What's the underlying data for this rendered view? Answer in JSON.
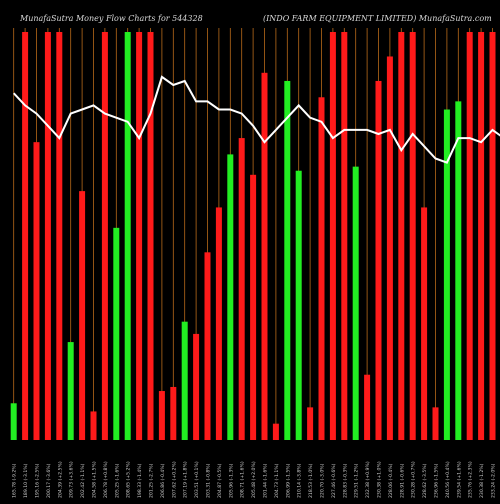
{
  "header": {
    "left_text": "MunafaSutra  Money Flow  Charts for 544328",
    "right_text": "(INDO FARM EQUIPMENT LIMITED) MunafaSutra.com"
  },
  "colors": {
    "background": "#000000",
    "up_bar": "#22ee22",
    "down_bar": "#ff1a1a",
    "grid_line": "#b86a1a",
    "price_line": "#ffffff",
    "label_text": "#cfcfcf"
  },
  "chart_data": {
    "type": "bar",
    "title": "",
    "bar_scale": [
      0,
      100
    ],
    "line_scale": [
      0,
      100
    ],
    "categories": [
      "165.78 (-9.2%)",
      "189.10 (-3.1%)",
      "195.16 (-2.5%)",
      "200.17 (-3.6%)",
      "204.39 (+2.5%)",
      "209.73 (+3.6%)",
      "202.42 (-1.1%)",
      "204.58 (+1.5%)",
      "206.78 (+0.8%)",
      "205.25 (-1.6%)",
      "208.65 (+5.2%)",
      "198.33 (-1.4%)",
      "201.25 (-2.7%)",
      "206.86 (-0.4%)",
      "207.62 (+0.2%)",
      "207.19 (+1.8%)",
      "203.51 (+0.1%)",
      "203.31 (-0.8%)",
      "204.87 (-0.5%)",
      "205.96 (-1.3%)",
      "208.71 (+1.6%)",
      "205.48 (+2.0%)",
      "201.44 (-1.6%)",
      "204.73 (-1.1%)",
      "206.99 (-1.5%)",
      "210.14 (-3.8%)",
      "218.53 (-1.0%)",
      "220.70 (-3.0%)",
      "227.46 (-0.6%)",
      "228.83 (-0.3%)",
      "229.51 (-1.2%)",
      "232.38 (+0.9%)",
      "230.38 (+1.0%)",
      "228.06 (-0.4%)",
      "228.91 (-0.6%)",
      "230.28 (+0.7%)",
      "228.62 (-3.5%)",
      "236.96 (-1.5%)",
      "240.56 (+0.4%)",
      "239.54 (+1.6%)",
      "235.76 (+2.3%)",
      "230.38 (-1.2%)",
      "233.24 (-2.0%)",
      "238.10 (-0.4%)",
      "239.12 (+0.9%)",
      "237.03 (+1.6%)",
      "233.21 (-1.7%)",
      "236.54 (-0.3%)",
      "237.27 (-0.9%)",
      "239.36 (-2.9%)"
    ],
    "bar_colors": [
      "green",
      "red",
      "red",
      "red",
      "red",
      "green",
      "red",
      "red",
      "red",
      "green",
      "green",
      "red",
      "red",
      "red",
      "red",
      "green",
      "red",
      "red",
      "red",
      "green",
      "red",
      "red",
      "red",
      "red",
      "green",
      "green",
      "red",
      "red",
      "red",
      "red",
      "green",
      "red",
      "red",
      "red",
      "red",
      "red",
      "red",
      "red",
      "green",
      "green",
      "red",
      "red",
      "red",
      "red",
      "red",
      "red",
      "red",
      "red",
      "red",
      "red"
    ],
    "bar_values": [
      9,
      100,
      73,
      100,
      100,
      24,
      61,
      7,
      100,
      52,
      100,
      100,
      100,
      12,
      13,
      29,
      26,
      46,
      57,
      70,
      74,
      65,
      90,
      4,
      88,
      66,
      8,
      84,
      100,
      100,
      67,
      16,
      88,
      94,
      100,
      100,
      57,
      8,
      81,
      83,
      100,
      100,
      100,
      24,
      100,
      80,
      10,
      100,
      8,
      10
    ],
    "line_values": [
      85,
      82,
      80,
      77,
      74,
      80,
      81,
      82,
      80,
      79,
      78,
      74,
      80,
      89,
      87,
      88,
      83,
      83,
      81,
      81,
      80,
      77,
      73,
      76,
      79,
      82,
      79,
      78,
      74,
      76,
      76,
      76,
      75,
      76,
      71,
      75,
      72,
      69,
      68,
      74,
      74,
      73,
      76,
      74,
      72,
      70,
      70,
      69,
      68,
      64
    ]
  }
}
